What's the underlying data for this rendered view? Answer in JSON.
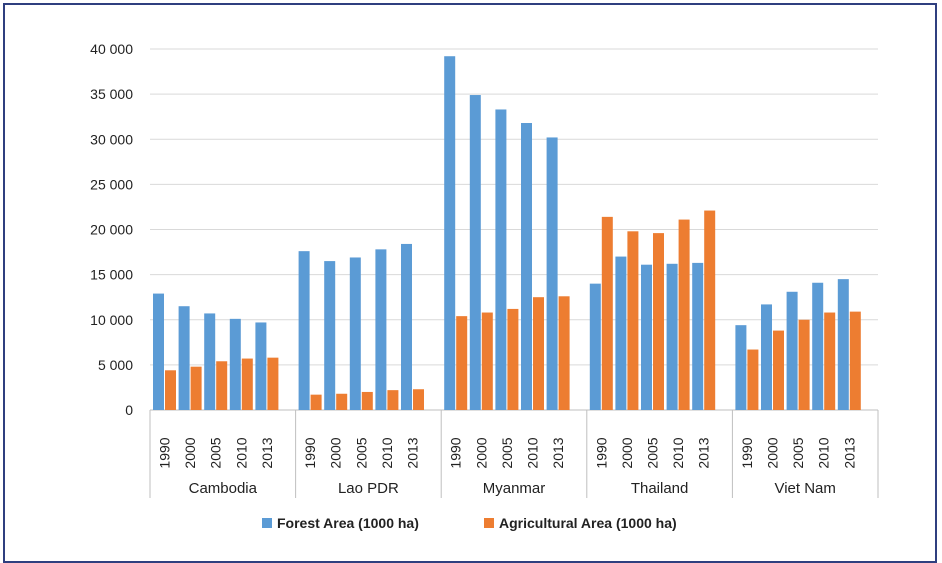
{
  "chart_data": {
    "type": "bar",
    "title": "",
    "xlabel": "",
    "ylabel": "",
    "ylim": [
      0,
      40000
    ],
    "yticks": [
      0,
      5000,
      10000,
      15000,
      20000,
      25000,
      30000,
      35000,
      40000
    ],
    "ytick_labels": [
      "0",
      "5 000",
      "10 000",
      "15 000",
      "20 000",
      "25 000",
      "30 000",
      "35 000",
      "40 000"
    ],
    "grid": true,
    "legend_position": "bottom",
    "groups": [
      {
        "name": "Cambodia",
        "years": [
          "1990",
          "2000",
          "2005",
          "2010",
          "2013"
        ]
      },
      {
        "name": "Lao PDR",
        "years": [
          "1990",
          "2000",
          "2005",
          "2010",
          "2013"
        ]
      },
      {
        "name": "Myanmar",
        "years": [
          "1990",
          "2000",
          "2005",
          "2010",
          "2013"
        ]
      },
      {
        "name": "Thailand",
        "years": [
          "1990",
          "2000",
          "2005",
          "2010",
          "2013"
        ]
      },
      {
        "name": "Viet Nam",
        "years": [
          "1990",
          "2000",
          "2005",
          "2010",
          "2013"
        ]
      }
    ],
    "series": [
      {
        "name": "Forest Area (1000 ha)",
        "color": "#5b9bd5",
        "values": [
          [
            12900,
            11500,
            10700,
            10100,
            9700
          ],
          [
            17600,
            16500,
            16900,
            17800,
            18400
          ],
          [
            39200,
            34900,
            33300,
            31800,
            30200
          ],
          [
            14000,
            17000,
            16100,
            16200,
            16300
          ],
          [
            9400,
            11700,
            13100,
            14100,
            14500
          ]
        ]
      },
      {
        "name": "Agricultural Area (1000 ha)",
        "color": "#ed7d31",
        "values": [
          [
            4400,
            4800,
            5400,
            5700,
            5800
          ],
          [
            1700,
            1800,
            2000,
            2200,
            2300
          ],
          [
            10400,
            10800,
            11200,
            12500,
            12600
          ],
          [
            21400,
            19800,
            19600,
            21100,
            22100
          ],
          [
            6700,
            8800,
            10000,
            10800,
            10900
          ]
        ]
      }
    ]
  }
}
